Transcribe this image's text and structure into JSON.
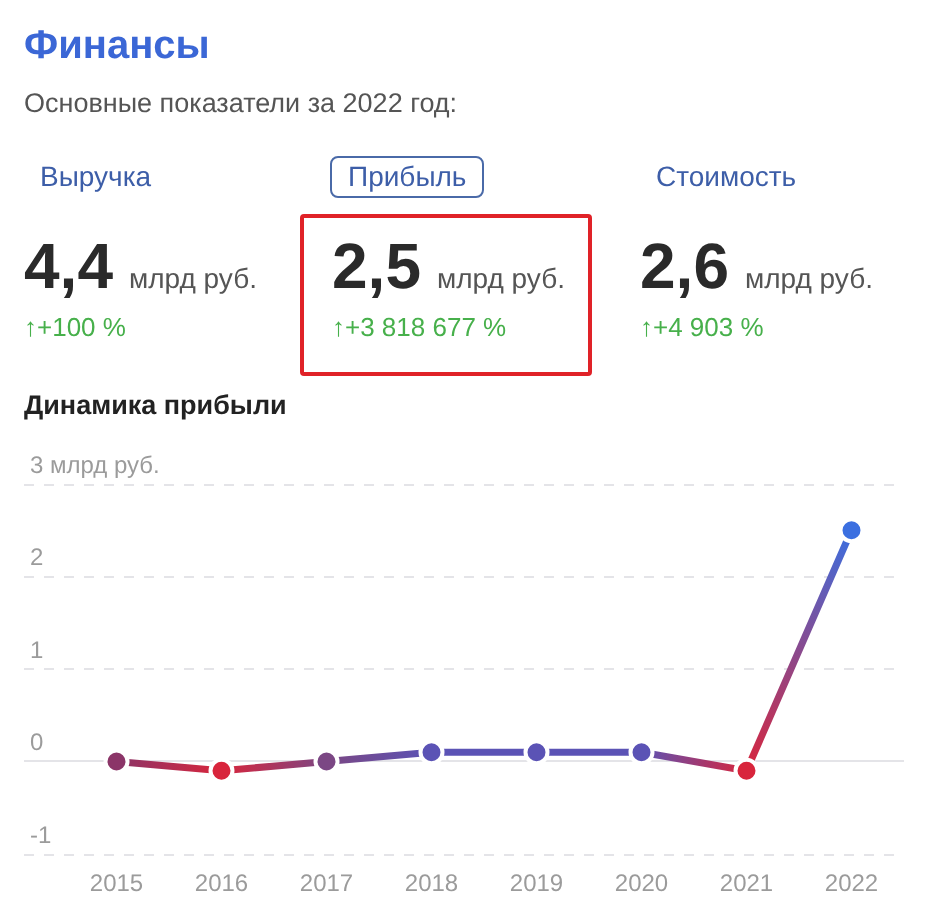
{
  "chart_data": [
    {
      "type": "other",
      "title": "Финансы",
      "subtitle": "Основные показатели за 2022 год:",
      "annotations": [
        "Выручка",
        "4,4",
        "млрд руб.",
        "↑+100 %",
        "Прибыль",
        "2,5",
        "млрд руб.",
        "↑+3 818 677 %",
        "Стоимость",
        "2,6",
        "млрд руб.",
        "↑+4 903 %"
      ]
    },
    {
      "type": "line",
      "title": "Динамика прибыли",
      "categories": [
        "2015",
        "2016",
        "2017",
        "2018",
        "2019",
        "2020",
        "2021",
        "2022"
      ],
      "series": [
        {
          "colors": [
            "#8b3568",
            "#d8253c",
            "#7b4784",
            "#5b53b5",
            "#5b53b5",
            "#5b53b5",
            "#d8253c",
            "#3b6fe0"
          ],
          "values": [
            0,
            -0.1,
            0,
            0.1,
            0.1,
            0.1,
            -0.1,
            2.5
          ]
        }
      ],
      "ylim": [
        -1,
        3
      ],
      "yticks": [
        -1,
        0,
        1,
        2,
        {
          "value": 3,
          "label": "3 млрд руб."
        }
      ],
      "grid": "y",
      "marker": "circle"
    }
  ]
}
